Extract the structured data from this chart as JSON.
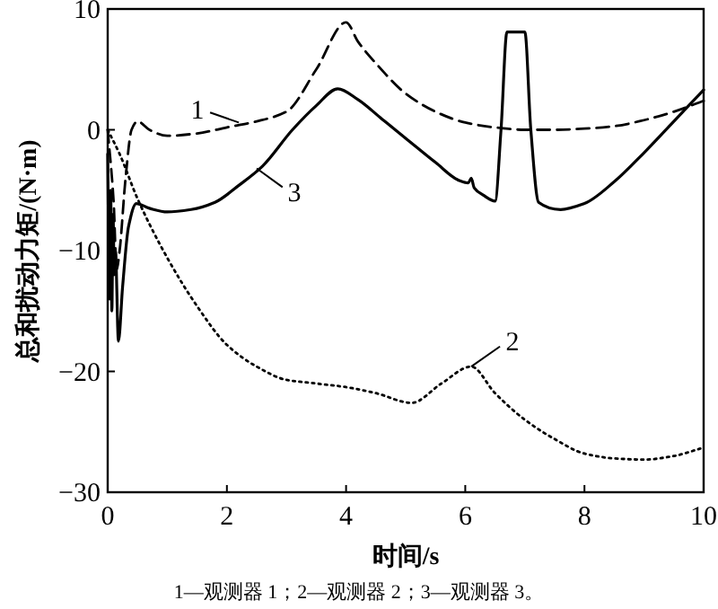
{
  "chart_data": {
    "type": "line",
    "xlabel": "时间/s",
    "ylabel": "总和扰动力矩/(N·m)",
    "xlim": [
      0,
      10
    ],
    "ylim": [
      -30,
      10
    ],
    "xticks": [
      0,
      2,
      4,
      6,
      8,
      10
    ],
    "yticks": [
      -30,
      -20,
      -10,
      0,
      10
    ],
    "series": [
      {
        "color": "#000000",
        "line_style": "dashed",
        "x": [
          0,
          0.1,
          0.15,
          0.2,
          0.3,
          0.4,
          0.5,
          0.7,
          1,
          1.5,
          2,
          2.5,
          3,
          3.5,
          4,
          4.2,
          4.5,
          5,
          5.5,
          6,
          6.5,
          7,
          7.5,
          8,
          8.5,
          9,
          9.5,
          10
        ],
        "values": [
          0,
          -6,
          -11.6,
          -10,
          -4,
          0,
          0.7,
          0,
          -0.5,
          -0.3,
          0.2,
          0.7,
          1.5,
          5,
          8.9,
          7.3,
          5.5,
          3,
          1.5,
          0.6,
          0.2,
          0,
          0,
          0.1,
          0.3,
          0.8,
          1.5,
          2.4
        ]
      },
      {
        "color": "#000000",
        "line_style": "dotted",
        "x": [
          0,
          0.2,
          0.5,
          1,
          1.5,
          2,
          2.5,
          3,
          3.5,
          4,
          4.5,
          5.1,
          5.6,
          6.1,
          6.5,
          7,
          7.5,
          8,
          8.5,
          9,
          9.5,
          10
        ],
        "values": [
          0,
          -2,
          -5.7,
          -10.6,
          -14.6,
          -17.8,
          -19.6,
          -20.7,
          -21,
          -21.3,
          -21.8,
          -22.6,
          -21,
          -19.6,
          -21.8,
          -24,
          -25.6,
          -26.8,
          -27.2,
          -27.3,
          -27,
          -26.3
        ]
      },
      {
        "color": "#000000",
        "line_style": "solid",
        "x": [
          0,
          0.03,
          0.05,
          0.07,
          0.09,
          0.11,
          0.13,
          0.18,
          0.25,
          0.35,
          0.48,
          0.7,
          1,
          1.4,
          1.8,
          2.2,
          2.6,
          3.1,
          3.5,
          3.86,
          4.2,
          4.6,
          5,
          5.5,
          5.9,
          6.05,
          6.1,
          6.15,
          6.3,
          6.5,
          6.6,
          6.7,
          7,
          7.1,
          7.23,
          7.6,
          8,
          8.5,
          9,
          9.5,
          10
        ],
        "values": [
          -2,
          -14,
          -5,
          -15,
          -7,
          -12,
          -10,
          -17.5,
          -13,
          -8,
          -6.1,
          -6.5,
          -6.8,
          -6.6,
          -6,
          -4.6,
          -3,
          0,
          2,
          3.4,
          2.5,
          0.9,
          -0.7,
          -2.7,
          -4.2,
          -4.4,
          -4,
          -4.8,
          -5.4,
          -5.9,
          0,
          8.1,
          8.1,
          0,
          -6,
          -6.6,
          -6.1,
          -4.3,
          -1.9,
          0.7,
          3.3
        ]
      }
    ],
    "annotations": [
      {
        "text": "1",
        "x": 2.2,
        "y": 0.6
      },
      {
        "text": "2",
        "x": 6.1,
        "y": -19.6
      },
      {
        "text": "3",
        "x": 2.5,
        "y": -3.2
      },
      "1—观测器 1；2—观测器 2；3—观测器 3。"
    ]
  }
}
